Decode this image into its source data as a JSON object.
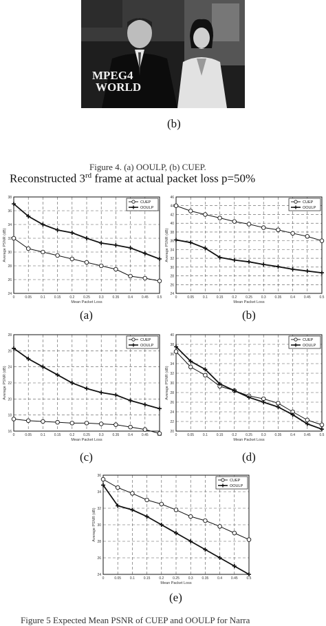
{
  "photo": {
    "overlay_line1": "MPEG4",
    "overlay_line2": "WORLD"
  },
  "fig4": {
    "sublabel": "(b)",
    "caption": "Figure 4.    (a) OOULP, (b) CUEP."
  },
  "heading": {
    "pre": "Reconstructed 3",
    "sup": "rd",
    "post": "  frame at actual packet loss p=50%"
  },
  "fig5_caption": "Figure 5    Expected Mean PSNR of CUEP and OOULP for Narra",
  "chart_data": [
    {
      "type": "line",
      "sublabel": "(a)",
      "x": [
        0,
        0.05,
        0.1,
        0.15,
        0.2,
        0.25,
        0.3,
        0.35,
        0.4,
        0.45,
        0.5
      ],
      "xticks": [
        "0",
        "0.05",
        "0.1",
        "0.15",
        "0.2",
        "0.25",
        "0.3",
        "0.35",
        "0.4",
        "0.45",
        "0.5"
      ],
      "ylim": [
        24,
        38
      ],
      "yticks": [
        "24",
        "26",
        "28",
        "30",
        "32",
        "34",
        "36",
        "38"
      ],
      "xlabel": "Mean Packet Loss",
      "ylabel": "Average PSNR (dB)",
      "legend": [
        "CUEP",
        "OOULP"
      ],
      "series": [
        {
          "name": "CUEP",
          "marker": "circle",
          "values": [
            32.0,
            30.5,
            30.0,
            29.5,
            29.0,
            28.5,
            28.0,
            27.5,
            26.5,
            26.2,
            25.8
          ]
        },
        {
          "name": "OOULP",
          "marker": "plus",
          "values": [
            37.0,
            35.2,
            34.0,
            33.2,
            32.8,
            32.0,
            31.3,
            31.0,
            30.6,
            29.8,
            29.0
          ]
        }
      ]
    },
    {
      "type": "line",
      "sublabel": "(b)",
      "x": [
        0,
        0.05,
        0.1,
        0.15,
        0.2,
        0.25,
        0.3,
        0.35,
        0.4,
        0.45,
        0.5
      ],
      "xticks": [
        "0",
        "0.05",
        "0.1",
        "0.15",
        "0.2",
        "0.25",
        "0.3",
        "0.35",
        "0.4",
        "0.45",
        "0.5"
      ],
      "ylim": [
        24,
        46
      ],
      "yticks": [
        "24",
        "26",
        "28",
        "30",
        "32",
        "34",
        "36",
        "38",
        "40",
        "42",
        "44",
        "46"
      ],
      "xlabel": "Mean Packet Loss",
      "ylabel": "Average PSNR (dB)",
      "legend": [
        "CUEP",
        "OOULP"
      ],
      "series": [
        {
          "name": "CUEP",
          "marker": "circle",
          "values": [
            44.0,
            42.8,
            42.0,
            41.2,
            40.4,
            39.8,
            39.0,
            38.5,
            37.7,
            37.0,
            36.0
          ]
        },
        {
          "name": "OOULP",
          "marker": "plus",
          "values": [
            36.2,
            35.6,
            34.3,
            32.2,
            31.6,
            31.2,
            30.6,
            30.1,
            29.5,
            29.1,
            28.7
          ]
        }
      ]
    },
    {
      "type": "line",
      "sublabel": "(c)",
      "x": [
        0,
        0.05,
        0.1,
        0.15,
        0.2,
        0.25,
        0.3,
        0.35,
        0.4,
        0.45,
        0.5
      ],
      "xticks": [
        "0",
        "0.05",
        "0.1",
        "0.15",
        "0.2",
        "0.25",
        "0.3",
        "0.35",
        "0.4",
        "0.45",
        "0.5"
      ],
      "ylim": [
        16,
        28
      ],
      "yticks": [
        "16",
        "18",
        "20",
        "22",
        "24",
        "26",
        "28"
      ],
      "xlabel": "Mean Packet Loss",
      "ylabel": "Average PSNR (dB)",
      "legend": [
        "CUEP",
        "OOULP"
      ],
      "series": [
        {
          "name": "CUEP",
          "marker": "circle",
          "values": [
            17.5,
            17.3,
            17.2,
            17.1,
            17.0,
            17.0,
            16.9,
            16.8,
            16.5,
            16.2,
            15.7
          ]
        },
        {
          "name": "OOULP",
          "marker": "plus",
          "values": [
            26.3,
            25.0,
            24.0,
            23.0,
            22.0,
            21.3,
            20.8,
            20.5,
            19.8,
            19.3,
            18.8
          ]
        }
      ]
    },
    {
      "type": "line",
      "sublabel": "(d)",
      "x": [
        0,
        0.05,
        0.1,
        0.15,
        0.2,
        0.25,
        0.3,
        0.35,
        0.4,
        0.45,
        0.5
      ],
      "xticks": [
        "0",
        "0.05",
        "0.1",
        "0.15",
        "0.2",
        "0.25",
        "0.3",
        "0.35",
        "0.4",
        "0.45",
        "0.5"
      ],
      "ylim": [
        20,
        40
      ],
      "yticks": [
        "20",
        "22",
        "24",
        "26",
        "28",
        "30",
        "32",
        "34",
        "36",
        "38",
        "40"
      ],
      "xlabel": "Mean Packet Loss",
      "ylabel": "Average PSNR (dB)",
      "legend": [
        "CUEP",
        "OOULP"
      ],
      "series": [
        {
          "name": "CUEP",
          "marker": "circle",
          "values": [
            36.5,
            33.3,
            31.6,
            29.3,
            28.4,
            27.3,
            26.7,
            25.8,
            24.0,
            22.3,
            21.3
          ]
        },
        {
          "name": "OOULP",
          "marker": "plus",
          "values": [
            37.5,
            34.5,
            32.8,
            29.8,
            28.4,
            27.0,
            26.0,
            25.0,
            23.4,
            21.5,
            20.4
          ]
        }
      ]
    },
    {
      "type": "line",
      "sublabel": "(e)",
      "x": [
        0,
        0.05,
        0.1,
        0.15,
        0.2,
        0.25,
        0.3,
        0.35,
        0.4,
        0.45,
        0.5
      ],
      "xticks": [
        "0",
        "0.05",
        "0.1",
        "0.15",
        "0.2",
        "0.25",
        "0.3",
        "0.35",
        "0.4",
        "0.45",
        "0.5"
      ],
      "ylim": [
        24,
        36
      ],
      "yticks": [
        "24",
        "26",
        "28",
        "30",
        "32",
        "34",
        "36"
      ],
      "xlabel": "Mean Packet Loss",
      "ylabel": "Average PSNR (dB)",
      "legend": [
        "CUEP",
        "OOULP"
      ],
      "series": [
        {
          "name": "CUEP",
          "marker": "circle",
          "values": [
            35.5,
            34.5,
            33.8,
            33.0,
            32.5,
            31.8,
            31.0,
            30.5,
            29.8,
            29.0,
            28.2
          ]
        },
        {
          "name": "OOULP",
          "marker": "plus",
          "values": [
            34.8,
            32.3,
            31.8,
            31.0,
            30.0,
            29.0,
            28.0,
            27.0,
            26.0,
            25.0,
            24.0
          ]
        }
      ]
    }
  ]
}
